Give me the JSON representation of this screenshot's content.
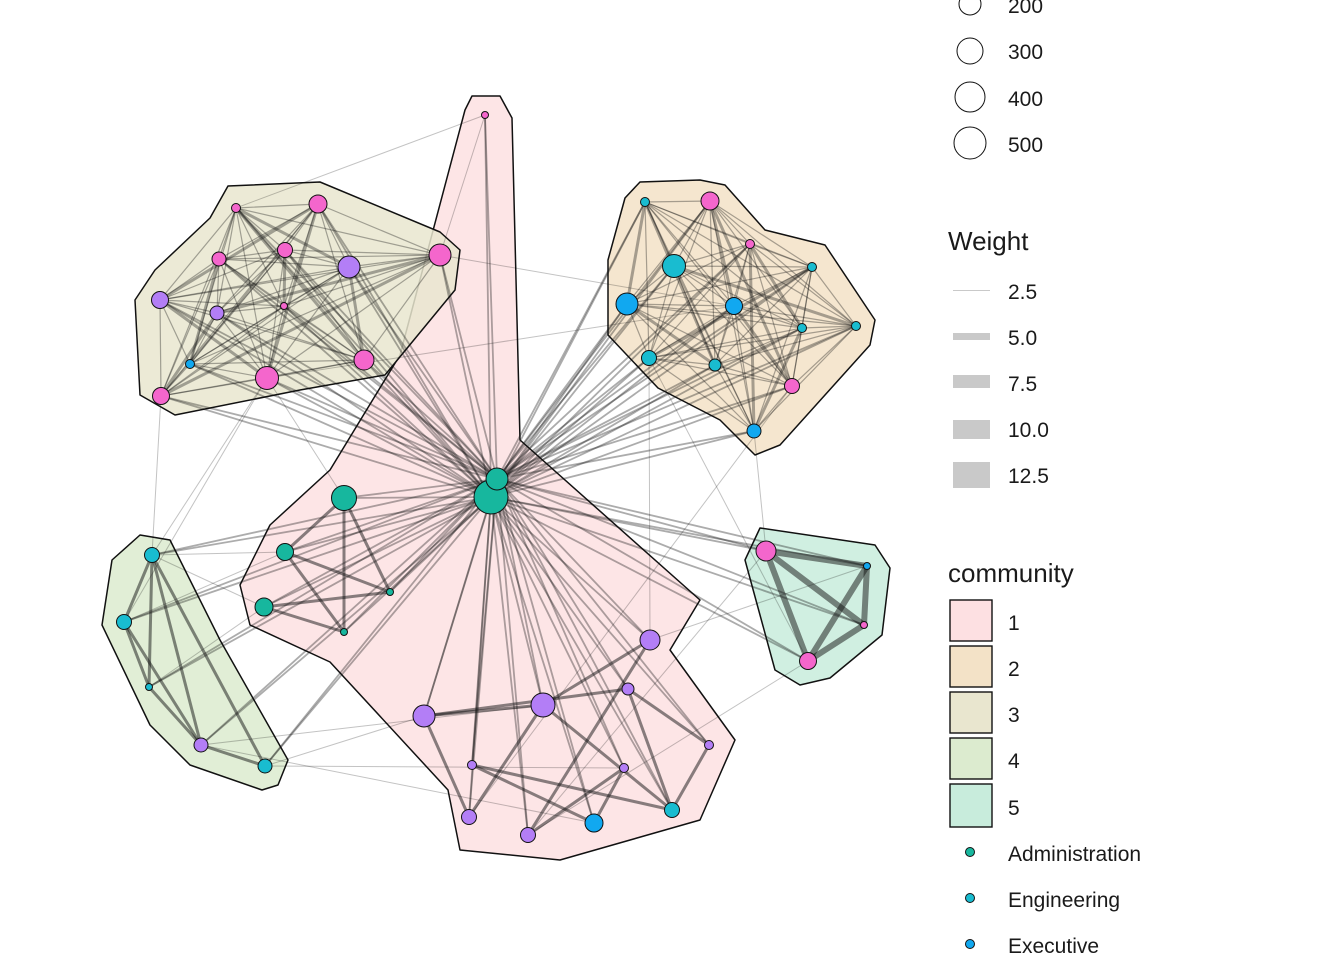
{
  "colors": {
    "community": {
      "1": "#fde0e2",
      "2": "#f3e2c7",
      "3": "#e9e6cf",
      "4": "#dcebcf",
      "5": "#c8ecdc"
    },
    "department": {
      "Administration": "#17b79e",
      "Engineering": "#19bcd0",
      "Executive": "#11a8f0",
      "Marketing": "#b37ef6",
      "Sales": "#f466cc"
    },
    "edge": "#111111"
  },
  "legend": {
    "size_labels": [
      "200",
      "300",
      "400",
      "500"
    ],
    "weight_title": "Weight",
    "weight_labels": [
      "2.5",
      "5.0",
      "7.5",
      "10.0",
      "12.5"
    ],
    "community_title": "community",
    "community_labels": [
      "1",
      "2",
      "3",
      "4",
      "5"
    ],
    "department_labels": [
      "Administration",
      "Engineering",
      "Executive"
    ]
  },
  "network": {
    "hubs": [
      "c1_hub_a",
      "c1_hub_b"
    ],
    "nodes": [
      {
        "id": "c1_hub_a",
        "community": 1,
        "dept": "Administration",
        "size": 500
      },
      {
        "id": "c1_hub_b",
        "community": 1,
        "dept": "Administration",
        "size": 300
      },
      {
        "id": "c1_top",
        "community": 1,
        "dept": "Sales",
        "size": 80
      },
      {
        "id": "c1_admin_1",
        "community": 1,
        "dept": "Administration",
        "size": 360
      },
      {
        "id": "c1_admin_2",
        "community": 1,
        "dept": "Administration",
        "size": 220
      },
      {
        "id": "c1_admin_3",
        "community": 1,
        "dept": "Administration",
        "size": 240
      },
      {
        "id": "c1_admin_4",
        "community": 1,
        "dept": "Administration",
        "size": 80
      },
      {
        "id": "c1_admin_5",
        "community": 1,
        "dept": "Administration",
        "size": 80
      },
      {
        "id": "c1_mkt_1",
        "community": 1,
        "dept": "Marketing",
        "size": 300
      },
      {
        "id": "c1_mkt_2",
        "community": 1,
        "dept": "Marketing",
        "size": 340
      },
      {
        "id": "c1_mkt_3",
        "community": 1,
        "dept": "Marketing",
        "size": 260
      },
      {
        "id": "c1_mkt_4",
        "community": 1,
        "dept": "Marketing",
        "size": 150
      },
      {
        "id": "c1_mkt_5",
        "community": 1,
        "dept": "Marketing",
        "size": 110
      },
      {
        "id": "c1_mkt_6",
        "community": 1,
        "dept": "Marketing",
        "size": 110
      },
      {
        "id": "c1_mkt_7",
        "community": 1,
        "dept": "Marketing",
        "size": 110
      },
      {
        "id": "c1_mkt_8",
        "community": 1,
        "dept": "Marketing",
        "size": 210
      },
      {
        "id": "c1_mkt_9",
        "community": 1,
        "dept": "Marketing",
        "size": 210
      },
      {
        "id": "c1_exec_1",
        "community": 1,
        "dept": "Executive",
        "size": 250
      },
      {
        "id": "c1_eng_1",
        "community": 1,
        "dept": "Engineering",
        "size": 200
      },
      {
        "id": "c3_1",
        "community": 3,
        "dept": "Sales",
        "size": 110
      },
      {
        "id": "c3_2",
        "community": 3,
        "dept": "Sales",
        "size": 240
      },
      {
        "id": "c3_3",
        "community": 3,
        "dept": "Sales",
        "size": 300
      },
      {
        "id": "c3_4",
        "community": 3,
        "dept": "Sales",
        "size": 200
      },
      {
        "id": "c3_5",
        "community": 3,
        "dept": "Sales",
        "size": 180
      },
      {
        "id": "c3_6",
        "community": 3,
        "dept": "Marketing",
        "size": 300
      },
      {
        "id": "c3_7",
        "community": 3,
        "dept": "Marketing",
        "size": 220
      },
      {
        "id": "c3_8",
        "community": 3,
        "dept": "Marketing",
        "size": 180
      },
      {
        "id": "c3_9",
        "community": 3,
        "dept": "Sales",
        "size": 80
      },
      {
        "id": "c3_10",
        "community": 3,
        "dept": "Executive",
        "size": 110
      },
      {
        "id": "c3_11",
        "community": 3,
        "dept": "Sales",
        "size": 260
      },
      {
        "id": "c3_12",
        "community": 3,
        "dept": "Sales",
        "size": 320
      },
      {
        "id": "c3_13",
        "community": 3,
        "dept": "Sales",
        "size": 220
      },
      {
        "id": "c2_1",
        "community": 2,
        "dept": "Engineering",
        "size": 100
      },
      {
        "id": "c2_2",
        "community": 2,
        "dept": "Sales",
        "size": 240
      },
      {
        "id": "c2_3",
        "community": 2,
        "dept": "Sales",
        "size": 110
      },
      {
        "id": "c2_4",
        "community": 2,
        "dept": "Engineering",
        "size": 320
      },
      {
        "id": "c2_5",
        "community": 2,
        "dept": "Engineering",
        "size": 110
      },
      {
        "id": "c2_6",
        "community": 2,
        "dept": "Executive",
        "size": 300
      },
      {
        "id": "c2_7",
        "community": 2,
        "dept": "Executive",
        "size": 220
      },
      {
        "id": "c2_8",
        "community": 2,
        "dept": "Engineering",
        "size": 100
      },
      {
        "id": "c2_9",
        "community": 2,
        "dept": "Engineering",
        "size": 100
      },
      {
        "id": "c2_10",
        "community": 2,
        "dept": "Engineering",
        "size": 200
      },
      {
        "id": "c2_11",
        "community": 2,
        "dept": "Engineering",
        "size": 160
      },
      {
        "id": "c2_12",
        "community": 2,
        "dept": "Sales",
        "size": 200
      },
      {
        "id": "c2_13",
        "community": 2,
        "dept": "Executive",
        "size": 180
      },
      {
        "id": "c4_1",
        "community": 4,
        "dept": "Engineering",
        "size": 200
      },
      {
        "id": "c4_2",
        "community": 4,
        "dept": "Engineering",
        "size": 200
      },
      {
        "id": "c4_3",
        "community": 4,
        "dept": "Engineering",
        "size": 80
      },
      {
        "id": "c4_4",
        "community": 4,
        "dept": "Marketing",
        "size": 180
      },
      {
        "id": "c4_5",
        "community": 4,
        "dept": "Engineering",
        "size": 190
      },
      {
        "id": "c5_1",
        "community": 5,
        "dept": "Sales",
        "size": 260
      },
      {
        "id": "c5_2",
        "community": 5,
        "dept": "Executive",
        "size": 80
      },
      {
        "id": "c5_3",
        "community": 5,
        "dept": "Sales",
        "size": 80
      },
      {
        "id": "c5_4",
        "community": 5,
        "dept": "Sales",
        "size": 230
      }
    ],
    "extra_edges": [
      [
        "c3_12",
        "c2_7"
      ],
      [
        "c3_3",
        "c2_7"
      ],
      [
        "c3_1",
        "c1_top"
      ],
      [
        "c3_3",
        "c1_top"
      ],
      [
        "c3_12",
        "c1_admin_1"
      ],
      [
        "c3_12",
        "c4_1"
      ],
      [
        "c3_12",
        "c4_2"
      ],
      [
        "c3_13",
        "c4_1"
      ],
      [
        "c4_1",
        "c1_admin_2"
      ],
      [
        "c4_1",
        "c1_admin_3"
      ],
      [
        "c4_2",
        "c1_admin_2"
      ],
      [
        "c4_3",
        "c1_admin_3"
      ],
      [
        "c4_5",
        "c1_mkt_1"
      ],
      [
        "c4_4",
        "c1_mkt_2"
      ],
      [
        "c4_5",
        "c1_mkt_6"
      ],
      [
        "c4_4",
        "c1_exec_1"
      ],
      [
        "c2_10",
        "c1_mkt_3"
      ],
      [
        "c2_13",
        "c5_1"
      ],
      [
        "c2_10",
        "c5_4"
      ],
      [
        "c2_12",
        "c1_mkt_8"
      ],
      [
        "c5_1",
        "c1_mkt_9"
      ],
      [
        "c5_4",
        "c1_mkt_9"
      ],
      [
        "c5_2",
        "c1_mkt_3"
      ],
      [
        "c1_admin_1",
        "c1_admin_5"
      ],
      [
        "c1_admin_2",
        "c1_admin_4"
      ],
      [
        "c1_admin_3",
        "c1_admin_4"
      ],
      [
        "c1_admin_1",
        "c1_admin_2"
      ],
      [
        "c1_admin_1",
        "c1_admin_4"
      ],
      [
        "c1_admin_2",
        "c1_admin_5"
      ],
      [
        "c1_admin_3",
        "c1_admin_5"
      ],
      [
        "c1_mkt_2",
        "c1_mkt_1"
      ],
      [
        "c1_mkt_2",
        "c1_mkt_8"
      ],
      [
        "c1_mkt_1",
        "c1_mkt_8"
      ],
      [
        "c1_mkt_5",
        "c1_exec_1"
      ],
      [
        "c1_mkt_5",
        "c1_eng_1"
      ],
      [
        "c1_mkt_4",
        "c1_eng_1"
      ],
      [
        "c1_mkt_4",
        "c1_mkt_7"
      ],
      [
        "c1_mkt_7",
        "c1_eng_1"
      ],
      [
        "c1_mkt_6",
        "c1_exec_1"
      ],
      [
        "c1_mkt_9",
        "c1_mkt_3"
      ],
      [
        "c1_mkt_9",
        "c1_mkt_6"
      ],
      [
        "c1_mkt_2",
        "c1_eng_1"
      ],
      [
        "c1_mkt_1",
        "c1_mkt_4"
      ],
      [
        "c1_mkt_3",
        "c1_mkt_2"
      ],
      [
        "c4_1",
        "c4_2"
      ],
      [
        "c4_1",
        "c4_3"
      ],
      [
        "c4_2",
        "c4_3"
      ],
      [
        "c4_3",
        "c4_4"
      ],
      [
        "c4_4",
        "c4_5"
      ],
      [
        "c4_1",
        "c4_5"
      ],
      [
        "c4_2",
        "c4_4"
      ],
      [
        "c4_1",
        "c4_4"
      ],
      [
        "c5_1",
        "c5_2"
      ],
      [
        "c5_1",
        "c5_3"
      ],
      [
        "c5_1",
        "c5_4"
      ],
      [
        "c5_2",
        "c5_3"
      ],
      [
        "c5_2",
        "c5_4"
      ],
      [
        "c5_3",
        "c5_4"
      ]
    ]
  }
}
